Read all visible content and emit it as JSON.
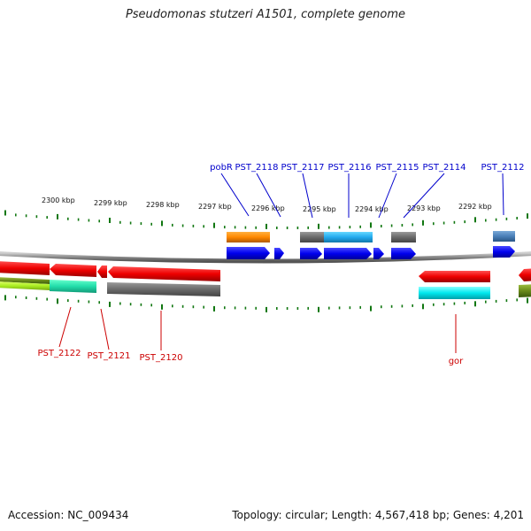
{
  "title": "Pseudomonas stutzeri A1501, complete genome",
  "accession": "Accession: NC_009434",
  "topology": "Topology: circular; Length: 4,567,418 bp; Genes: 4,201",
  "colors": {
    "top_label": "#0000cc",
    "bottom_label": "#cc0000",
    "tick": "#117711",
    "backbone": "#888888"
  },
  "kbp_labels": [
    "2300 kbp",
    "2299 kbp",
    "2298 kbp",
    "2297 kbp",
    "2296 kbp",
    "2295 kbp",
    "2294 kbp",
    "2293 kbp",
    "2292 kbp"
  ],
  "top_genes": [
    "pobR",
    "PST_2118",
    "PST_2117",
    "PST_2116",
    "PST_2115",
    "PST_2114",
    "PST_2112"
  ],
  "bottom_genes": [
    "PST_2122",
    "PST_2121",
    "PST_2120",
    "gor"
  ]
}
